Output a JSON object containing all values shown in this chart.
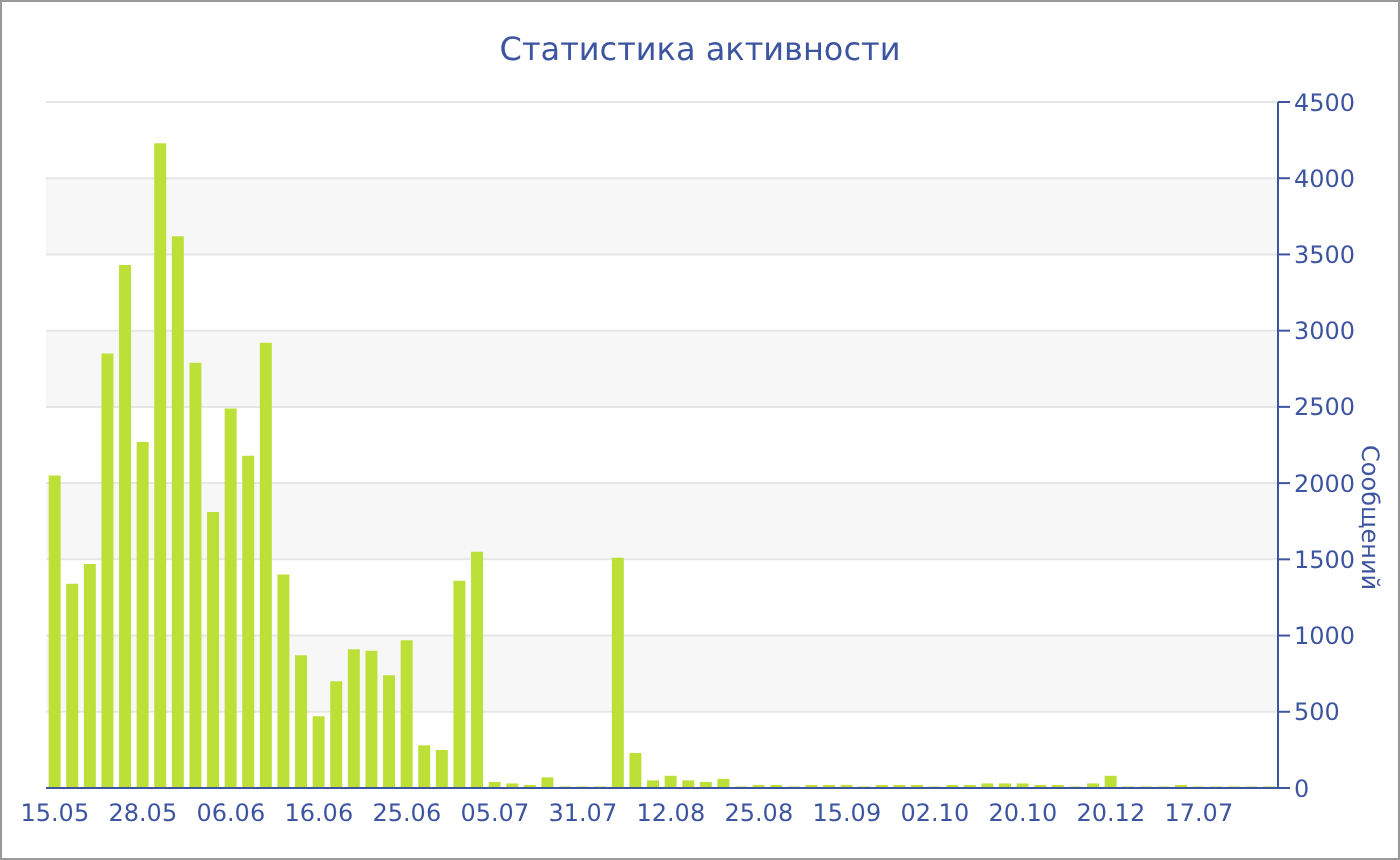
{
  "chart_data": {
    "type": "bar",
    "title": "Статистика активности",
    "ylabel": "Сообщений",
    "categories": [
      "15.05",
      null,
      null,
      null,
      null,
      "28.05",
      null,
      null,
      null,
      null,
      "06.06",
      null,
      null,
      null,
      null,
      "16.06",
      null,
      null,
      null,
      null,
      "25.06",
      null,
      null,
      null,
      null,
      "05.07",
      null,
      null,
      null,
      null,
      "31.07",
      null,
      null,
      null,
      null,
      "12.08",
      null,
      null,
      null,
      null,
      "25.08",
      null,
      null,
      null,
      null,
      "15.09",
      null,
      null,
      null,
      null,
      "02.10",
      null,
      null,
      null,
      null,
      "20.10",
      null,
      null,
      null,
      null,
      "20.12",
      null,
      null,
      null,
      null,
      "17.07",
      null,
      null,
      null,
      null
    ],
    "values": [
      2050,
      1340,
      1470,
      2850,
      3430,
      2270,
      4230,
      3620,
      2790,
      1810,
      2490,
      2180,
      2920,
      1400,
      870,
      470,
      700,
      910,
      900,
      740,
      970,
      280,
      250,
      1360,
      1550,
      40,
      30,
      20,
      70,
      10,
      10,
      10,
      1510,
      230,
      50,
      80,
      50,
      40,
      60,
      10,
      20,
      20,
      10,
      20,
      20,
      20,
      10,
      20,
      20,
      20,
      10,
      20,
      20,
      30,
      30,
      30,
      20,
      20,
      10,
      30,
      80,
      10,
      10,
      10,
      20,
      10,
      10,
      10,
      10,
      10
    ],
    "color": "#bde038",
    "ylim": [
      0,
      4500
    ],
    "yticks": [
      0,
      500,
      1000,
      1500,
      2000,
      2500,
      3000,
      3500,
      4000,
      4500
    ],
    "grid": "y"
  }
}
